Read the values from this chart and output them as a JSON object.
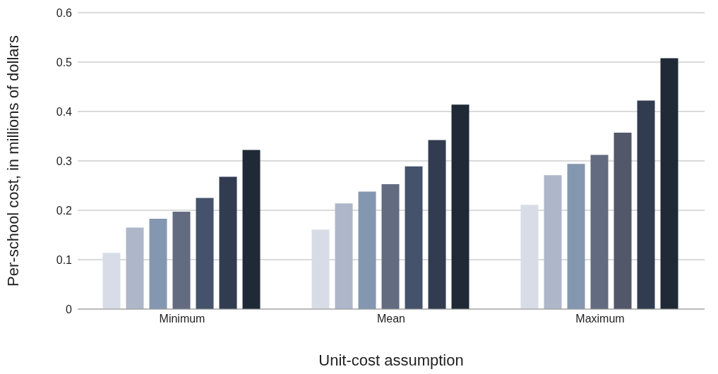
{
  "chart_data": {
    "type": "bar",
    "xlabel": "Unit-cost assumption",
    "ylabel": "Per-school cost, in millions of dollars",
    "categories": [
      "Minimum",
      "Mean",
      "Maximum"
    ],
    "series": [
      {
        "color": "#d8dce6",
        "values": [
          0.114,
          0.161,
          0.211
        ]
      },
      {
        "color": "#aeb6c9",
        "values": [
          0.165,
          0.214,
          0.271
        ]
      },
      {
        "color": "#8497b0",
        "values": [
          0.183,
          0.238,
          0.294
        ]
      },
      {
        "color": "#626b80",
        "values": [
          0.197,
          0.253,
          0.312
        ]
      },
      {
        "color": "#44536b",
        "colors": [
          "#44536b",
          "#44536b",
          "#52576a"
        ],
        "values": [
          0.225,
          0.289,
          0.357
        ]
      },
      {
        "color": "#323c50",
        "values": [
          0.268,
          0.342,
          0.422
        ]
      },
      {
        "color": "#1f2a36",
        "values": [
          0.322,
          0.414,
          0.508
        ]
      }
    ],
    "ylim": [
      0,
      0.6
    ],
    "yticks": [
      {
        "value": 0,
        "label": "0"
      },
      0.1,
      0.2,
      0.3,
      0.4,
      0.5,
      0.6
    ],
    "grid": "y",
    "legend": false
  }
}
